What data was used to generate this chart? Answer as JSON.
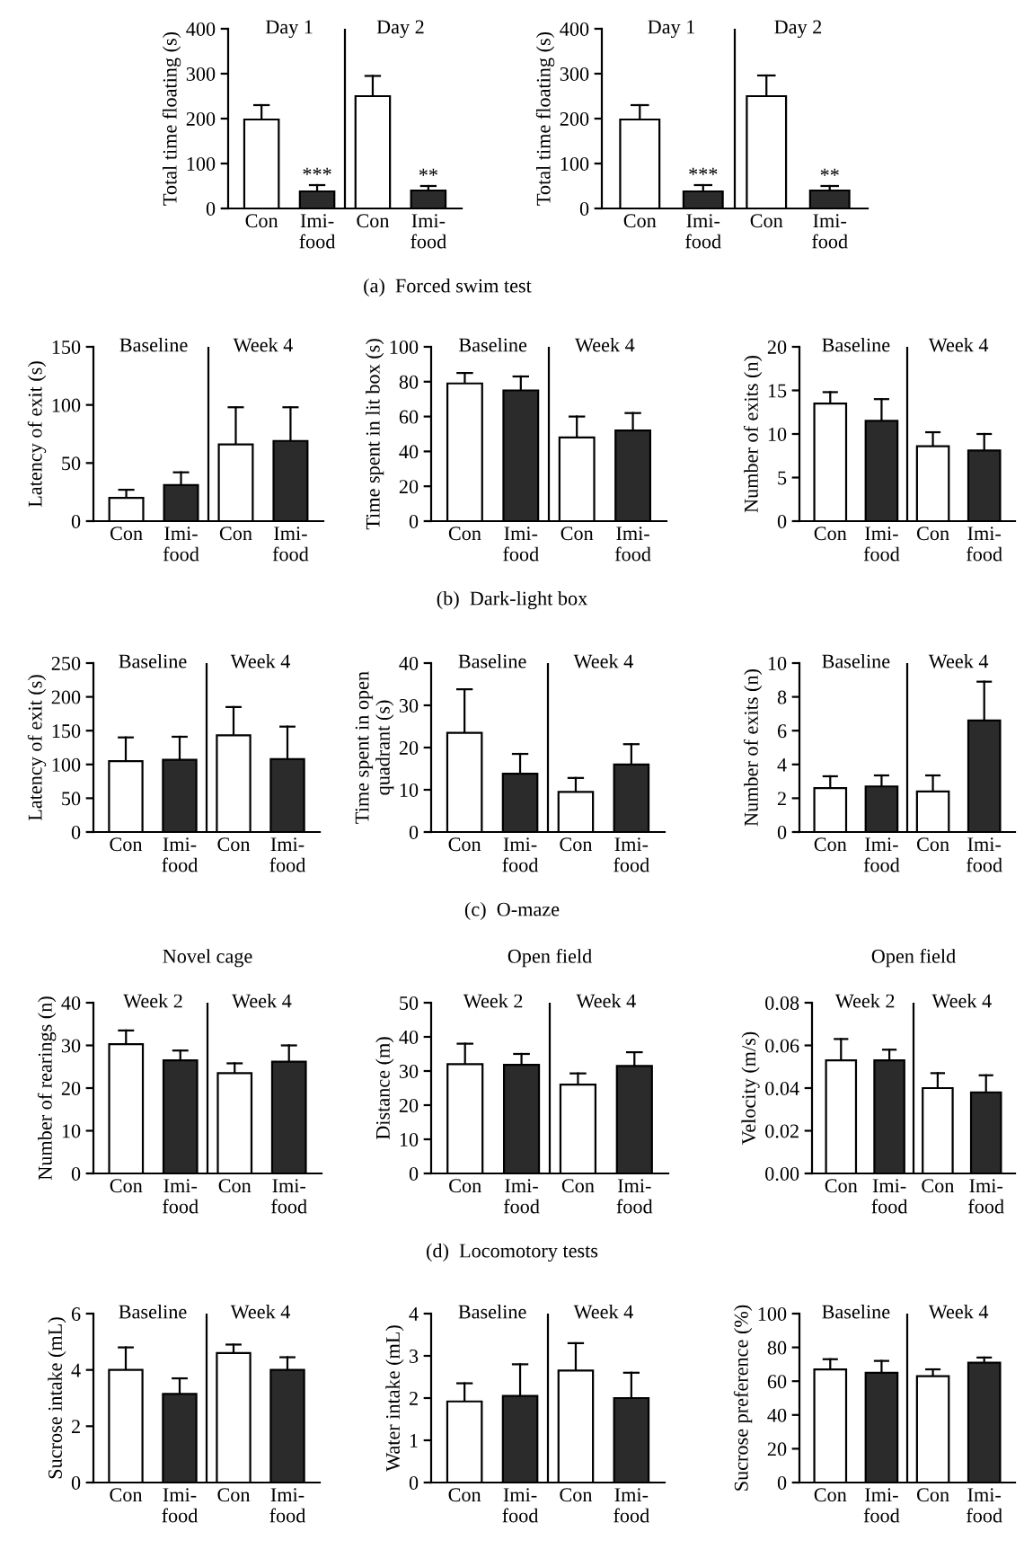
{
  "chart_data": [
    {
      "type": "bar",
      "categories": [
        "Con",
        "Imi-\nfood",
        "Con",
        "Imi-\nfood"
      ],
      "values": [
        198,
        38,
        250,
        40
      ],
      "colors": [
        "#ffffff",
        "#2b2b2b",
        "#ffffff",
        "#2b2b2b"
      ],
      "errors": [
        [
          198,
          230
        ],
        [
          38,
          52
        ],
        [
          250,
          295
        ],
        [
          40,
          50
        ]
      ],
      "value_labels": [
        null,
        "***",
        null,
        "**"
      ],
      "ylim": [
        0,
        400
      ],
      "yticks": [
        0,
        100,
        200,
        300,
        400
      ],
      "ylabel": "Total time floating (s)",
      "annotations": [
        "Day 1",
        "Day 2"
      ],
      "subtitle": "(a)  Forced swim test"
    },
    {
      "type": "bar",
      "categories": [
        "Con",
        "Imi-\nfood",
        "Con",
        "Imi-\nfood"
      ],
      "values": [
        198,
        38,
        250,
        40
      ],
      "colors": [
        "#ffffff",
        "#2b2b2b",
        "#ffffff",
        "#2b2b2b"
      ],
      "errors": [
        [
          198,
          230
        ],
        [
          38,
          52
        ],
        [
          250,
          296
        ],
        [
          40,
          50
        ]
      ],
      "value_labels": [
        null,
        "***",
        null,
        "**"
      ],
      "ylim": [
        0,
        400
      ],
      "yticks": [
        0,
        100,
        200,
        300,
        400
      ],
      "ylabel": "Total time floating (s)",
      "annotations": [
        "Day 1",
        "Day 2"
      ]
    },
    {
      "type": "bar",
      "categories": [
        "Con",
        "Imi-\nfood",
        "Con",
        "Imi-\nfood"
      ],
      "values": [
        20,
        31,
        66,
        69
      ],
      "colors": [
        "#ffffff",
        "#2b2b2b",
        "#ffffff",
        "#2b2b2b"
      ],
      "errors": [
        [
          20,
          27
        ],
        [
          31,
          42
        ],
        [
          66,
          98
        ],
        [
          69,
          98
        ]
      ],
      "ylim": [
        0,
        150
      ],
      "yticks": [
        0,
        50,
        100,
        150
      ],
      "ylabel": "Latency of exit (s)",
      "annotations": [
        "Baseline",
        "Week 4"
      ]
    },
    {
      "type": "bar",
      "categories": [
        "Con",
        "Imi-\nfood",
        "Con",
        "Imi-\nfood"
      ],
      "values": [
        79,
        75,
        48,
        52
      ],
      "colors": [
        "#ffffff",
        "#2b2b2b",
        "#ffffff",
        "#2b2b2b"
      ],
      "errors": [
        [
          79,
          85
        ],
        [
          75,
          83
        ],
        [
          48,
          60
        ],
        [
          52,
          62
        ]
      ],
      "ylim": [
        0,
        100
      ],
      "yticks": [
        0,
        20,
        40,
        60,
        80,
        100
      ],
      "ylabel": "Time spent in lit box (s)",
      "annotations": [
        "Baseline",
        "Week 4"
      ],
      "subtitle": "(b)  Dark-light box"
    },
    {
      "type": "bar",
      "categories": [
        "Con",
        "Imi-\nfood",
        "Con",
        "Imi-\nfood"
      ],
      "values": [
        13.5,
        11.5,
        8.6,
        8.1
      ],
      "colors": [
        "#ffffff",
        "#2b2b2b",
        "#ffffff",
        "#2b2b2b"
      ],
      "errors": [
        [
          13.5,
          14.8
        ],
        [
          11.5,
          14
        ],
        [
          8.6,
          10.2
        ],
        [
          8.1,
          10
        ]
      ],
      "ylim": [
        0,
        20
      ],
      "yticks": [
        0,
        5,
        10,
        15,
        20
      ],
      "ylabel": "Number of exits (n)",
      "annotations": [
        "Baseline",
        "Week 4"
      ]
    },
    {
      "type": "bar",
      "categories": [
        "Con",
        "Imi-\nfood",
        "Con",
        "Imi-\nfood"
      ],
      "values": [
        105,
        107,
        143,
        108
      ],
      "colors": [
        "#ffffff",
        "#2b2b2b",
        "#ffffff",
        "#2b2b2b"
      ],
      "errors": [
        [
          105,
          140
        ],
        [
          107,
          141
        ],
        [
          143,
          185
        ],
        [
          108,
          156
        ]
      ],
      "ylim": [
        0,
        250
      ],
      "yticks": [
        0,
        50,
        100,
        150,
        200,
        250
      ],
      "ylabel": "Latency of exit (s)",
      "annotations": [
        "Baseline",
        "Week 4"
      ]
    },
    {
      "type": "bar",
      "categories": [
        "Con",
        "Imi-\nfood",
        "Con",
        "Imi-\nfood"
      ],
      "values": [
        23.5,
        13.8,
        9.5,
        16
      ],
      "colors": [
        "#ffffff",
        "#2b2b2b",
        "#ffffff",
        "#2b2b2b"
      ],
      "errors": [
        [
          23.5,
          33.8
        ],
        [
          13.8,
          18.5
        ],
        [
          9.5,
          12.8
        ],
        [
          16,
          20.8
        ]
      ],
      "ylim": [
        0,
        40
      ],
      "yticks": [
        0,
        10,
        20,
        30,
        40
      ],
      "ylabel": "Time spent in open\nquadrant (s)",
      "annotations": [
        "Baseline",
        "Week 4"
      ],
      "subtitle": "(c)  O-maze"
    },
    {
      "type": "bar",
      "categories": [
        "Con",
        "Imi-\nfood",
        "Con",
        "Imi-\nfood"
      ],
      "values": [
        2.6,
        2.7,
        2.4,
        6.6
      ],
      "colors": [
        "#ffffff",
        "#2b2b2b",
        "#ffffff",
        "#2b2b2b"
      ],
      "errors": [
        [
          2.6,
          3.3
        ],
        [
          2.7,
          3.35
        ],
        [
          2.4,
          3.35
        ],
        [
          6.6,
          8.9
        ]
      ],
      "ylim": [
        0,
        10
      ],
      "yticks": [
        0,
        2,
        4,
        6,
        8,
        10
      ],
      "ylabel": "Number of exits (n)",
      "annotations": [
        "Baseline",
        "Week 4"
      ]
    },
    {
      "type": "bar",
      "title": "Novel cage",
      "categories": [
        "Con",
        "Imi-\nfood",
        "Con",
        "Imi-\nfood"
      ],
      "values": [
        30.3,
        26.5,
        23.5,
        26.2
      ],
      "colors": [
        "#ffffff",
        "#2b2b2b",
        "#ffffff",
        "#2b2b2b"
      ],
      "errors": [
        [
          30.3,
          33.5
        ],
        [
          26.5,
          28.8
        ],
        [
          23.5,
          25.8
        ],
        [
          26.2,
          30
        ]
      ],
      "ylim": [
        0,
        40
      ],
      "yticks": [
        0,
        10,
        20,
        30,
        40
      ],
      "ylabel": "Number of rearings (n)",
      "annotations": [
        "Week 2",
        "Week 4"
      ]
    },
    {
      "type": "bar",
      "title": "Open field",
      "categories": [
        "Con",
        "Imi-\nfood",
        "Con",
        "Imi-\nfood"
      ],
      "values": [
        32,
        31.8,
        26,
        31.5
      ],
      "colors": [
        "#ffffff",
        "#2b2b2b",
        "#ffffff",
        "#2b2b2b"
      ],
      "errors": [
        [
          32,
          38
        ],
        [
          31.8,
          35
        ],
        [
          26,
          29.3
        ],
        [
          31.5,
          35.5
        ]
      ],
      "ylim": [
        0,
        50
      ],
      "yticks": [
        0,
        10,
        20,
        30,
        40,
        50
      ],
      "ylabel": "Distance (m)",
      "annotations": [
        "Week 2",
        "Week 4"
      ],
      "subtitle": "(d)  Locomotory tests"
    },
    {
      "type": "bar",
      "title": "Open field",
      "categories": [
        "Con",
        "Imi-\nfood",
        "Con",
        "Imi-\nfood"
      ],
      "values": [
        0.053,
        0.053,
        0.04,
        0.038
      ],
      "colors": [
        "#ffffff",
        "#2b2b2b",
        "#ffffff",
        "#2b2b2b"
      ],
      "errors": [
        [
          0.053,
          0.063
        ],
        [
          0.053,
          0.058
        ],
        [
          0.04,
          0.047
        ],
        [
          0.038,
          0.046
        ]
      ],
      "ylim": [
        0,
        0.08
      ],
      "yticks": [
        {
          "value": 0,
          "label": "0.00"
        },
        {
          "value": 0.02,
          "label": "0.02"
        },
        {
          "value": 0.04,
          "label": "0.04"
        },
        {
          "value": 0.06,
          "label": "0.06"
        },
        {
          "value": 0.08,
          "label": "0.08"
        }
      ],
      "ylabel": "Velocity (m/s)",
      "annotations": [
        "Week 2",
        "Week 4"
      ]
    },
    {
      "type": "bar",
      "categories": [
        "Con",
        "Imi-\nfood",
        "Con",
        "Imi-\nfood"
      ],
      "values": [
        4.0,
        3.15,
        4.6,
        4.0
      ],
      "colors": [
        "#ffffff",
        "#2b2b2b",
        "#ffffff",
        "#2b2b2b"
      ],
      "errors": [
        [
          4.0,
          4.8
        ],
        [
          3.15,
          3.7
        ],
        [
          4.6,
          4.9
        ],
        [
          4.0,
          4.45
        ]
      ],
      "ylim": [
        0,
        6
      ],
      "yticks": [
        0,
        2,
        4,
        6
      ],
      "ylabel": "Sucrose intake (mL)",
      "annotations": [
        "Baseline",
        "Week 4"
      ]
    },
    {
      "type": "bar",
      "categories": [
        "Con",
        "Imi-\nfood",
        "Con",
        "Imi-\nfood"
      ],
      "values": [
        1.92,
        2.05,
        2.65,
        2.0
      ],
      "colors": [
        "#ffffff",
        "#2b2b2b",
        "#ffffff",
        "#2b2b2b"
      ],
      "errors": [
        [
          1.92,
          2.35
        ],
        [
          2.05,
          2.8
        ],
        [
          2.65,
          3.3
        ],
        [
          2.0,
          2.6
        ]
      ],
      "ylim": [
        0,
        4
      ],
      "yticks": [
        0,
        1,
        2,
        3,
        4
      ],
      "ylabel": "Water intake (mL)",
      "annotations": [
        "Baseline",
        "Week 4"
      ]
    },
    {
      "type": "bar",
      "categories": [
        "Con",
        "Imi-\nfood",
        "Con",
        "Imi-\nfood"
      ],
      "values": [
        67,
        65,
        63,
        71
      ],
      "colors": [
        "#ffffff",
        "#2b2b2b",
        "#ffffff",
        "#2b2b2b"
      ],
      "errors": [
        [
          67,
          73
        ],
        [
          65,
          72
        ],
        [
          63,
          67
        ],
        [
          71,
          74
        ]
      ],
      "ylim": [
        0,
        100
      ],
      "yticks": [
        0,
        20,
        40,
        60,
        80,
        100
      ],
      "ylabel": "Sucrose preference (%)",
      "annotations": [
        "Baseline",
        "Week 4"
      ]
    }
  ]
}
